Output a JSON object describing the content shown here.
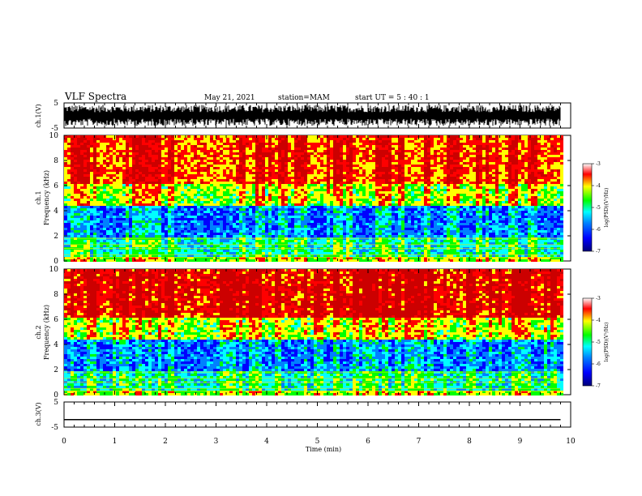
{
  "header": {
    "title": "VLF Spectra",
    "date": "May 21, 2021",
    "station": "station=MAM",
    "start": "start UT = 5 : 40 : 1"
  },
  "colors": {
    "spectrogram_scale": [
      "#00007a",
      "#0000ff",
      "#0080ff",
      "#00ffff",
      "#00ff00",
      "#ffff00",
      "#ff0000",
      "#cc0000"
    ],
    "waveform": "#000000"
  },
  "chart_data": [
    {
      "type": "line",
      "panel": "ch1-waveform",
      "ylabel": "ch.1(V)",
      "ylim": [
        -5,
        5
      ],
      "yticks": [
        "5",
        "-5"
      ],
      "description_values": "dense broadband waveform spanning roughly -4 to +4 V over the full 0-9.8 min record"
    },
    {
      "type": "heatmap",
      "panel": "ch1-spectrogram",
      "ylabel": "ch.1 Frequency (kHz)",
      "ylim": [
        0,
        10
      ],
      "yticks": [
        "0",
        "2",
        "4",
        "6",
        "8",
        "10"
      ],
      "colorbar": {
        "label": "log(PSD)(V²/Hz)",
        "range": [
          -7,
          -3
        ],
        "ticks": [
          "-3",
          "-4",
          "-5",
          "-6",
          "-7"
        ]
      }
    },
    {
      "type": "heatmap",
      "panel": "ch2-spectrogram",
      "ylabel": "ch.2 Frequency (kHz)",
      "ylim": [
        0,
        10
      ],
      "yticks": [
        "0",
        "2",
        "4",
        "6",
        "8",
        "10"
      ],
      "colorbar": {
        "label": "log(PSD)(V²/Hz)",
        "range": [
          -7,
          -3
        ],
        "ticks": [
          "-3",
          "-4",
          "-5",
          "-6",
          "-7"
        ]
      }
    },
    {
      "type": "line",
      "panel": "ch3-waveform",
      "ylabel": "ch.3(V)",
      "ylim": [
        -5,
        5
      ],
      "yticks": [
        "5",
        "-5"
      ],
      "series": [
        {
          "values": [
            -2,
            -2
          ]
        }
      ]
    }
  ],
  "time_axis": {
    "label": "Time (min)",
    "xlim": [
      0,
      10
    ],
    "ticks": [
      "0",
      "1",
      "2",
      "3",
      "4",
      "5",
      "6",
      "7",
      "8",
      "9",
      "10"
    ],
    "data_end": 9.8
  }
}
